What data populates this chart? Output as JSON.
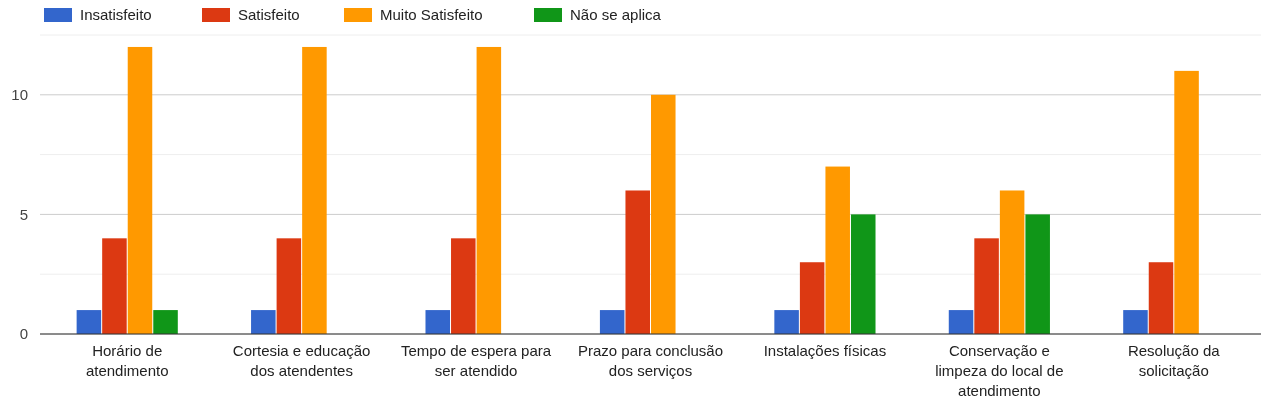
{
  "chart_data": {
    "type": "bar",
    "categories": [
      "Horário de atendimento",
      "Cortesia e educação dos atendentes",
      "Tempo de espera para ser atendido",
      "Prazo para conclusão dos serviços",
      "Instalações físicas",
      "Conservação e limpeza do local de atendimento",
      "Resolução da solicitação"
    ],
    "series": [
      {
        "name": "Insatisfeito",
        "color": "#3366cc",
        "values": [
          1,
          1,
          1,
          1,
          1,
          1,
          1
        ]
      },
      {
        "name": "Satisfeito",
        "color": "#dc3912",
        "values": [
          4,
          4,
          4,
          6,
          3,
          4,
          3
        ]
      },
      {
        "name": "Muito Satisfeito",
        "color": "#ff9900",
        "values": [
          12,
          12,
          12,
          10,
          7,
          6,
          11
        ]
      },
      {
        "name": "Não se aplica",
        "color": "#109618",
        "values": [
          1,
          0,
          0,
          0,
          5,
          5,
          0
        ]
      }
    ],
    "ylim": [
      0,
      12.5
    ],
    "yticks": [
      0,
      {
        "value": 2.5,
        "label": null
      },
      5,
      {
        "value": 7.5,
        "label": null
      },
      10,
      {
        "value": 12.5,
        "label": null
      }
    ],
    "grid": true,
    "legend": "top"
  }
}
